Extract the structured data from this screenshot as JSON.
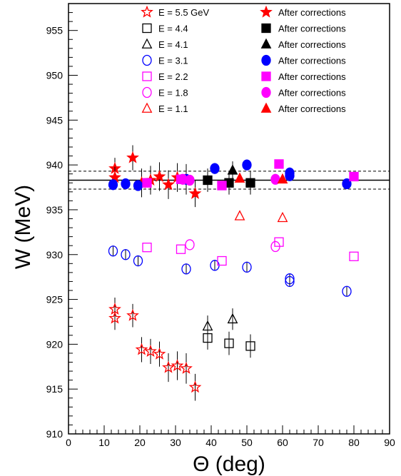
{
  "chart_data": {
    "type": "scatter",
    "xlabel": "Θ (deg)",
    "ylabel": "W (MeV)",
    "xlim": [
      0,
      90
    ],
    "ylim": [
      910,
      958
    ],
    "x_ticks": [
      "0",
      "10",
      "20",
      "30",
      "40",
      "50",
      "60",
      "70",
      "80",
      "90"
    ],
    "y_ticks": [
      "910",
      "915",
      "920",
      "925",
      "930",
      "935",
      "940",
      "945",
      "950",
      "955"
    ],
    "reference_lines": {
      "solid": 938.3,
      "dashed": [
        937.3,
        939.3
      ]
    },
    "legend": {
      "placement": "top",
      "rows": [
        {
          "label": "E = 5.5 GeV",
          "corr_label": "After corrections",
          "color": "#ff0000",
          "symbol": "star"
        },
        {
          "label": "E = 4.4",
          "corr_label": "After corrections",
          "color": "#000000",
          "symbol": "square"
        },
        {
          "label": "E = 4.1",
          "corr_label": "After corrections",
          "color": "#000000",
          "symbol": "triangle"
        },
        {
          "label": "E = 3.1",
          "corr_label": "After corrections",
          "color": "#0000ff",
          "symbol": "circle"
        },
        {
          "label": "E = 2.2",
          "corr_label": "After corrections",
          "color": "#ff00ff",
          "symbol": "square"
        },
        {
          "label": "E = 1.8",
          "corr_label": "After corrections",
          "color": "#ff00ff",
          "symbol": "circle"
        },
        {
          "label": "E = 1.1",
          "corr_label": "After corrections",
          "color": "#ff0000",
          "symbol": "triangle"
        }
      ]
    },
    "series": [
      {
        "name": "E = 5.5 GeV",
        "symbol": "star",
        "filled": false,
        "color": "#ff0000",
        "points": [
          [
            13,
            923.9,
            1.3
          ],
          [
            13,
            922.9,
            1.3
          ],
          [
            18,
            923.2,
            1.3
          ],
          [
            20.5,
            919.4,
            1.4
          ],
          [
            23,
            919.2,
            1.4
          ],
          [
            25.5,
            918.9,
            1.4
          ],
          [
            28,
            917.4,
            1.6
          ],
          [
            30.5,
            917.6,
            1.6
          ],
          [
            33,
            917.3,
            1.7
          ],
          [
            35.5,
            915.2,
            1.5
          ]
        ]
      },
      {
        "name": "After corrections 5.5",
        "symbol": "star",
        "filled": true,
        "color": "#ff0000",
        "points": [
          [
            13,
            939.6,
            1.2
          ],
          [
            13,
            938.6,
            1.2
          ],
          [
            18,
            940.8,
            1.4
          ],
          [
            20.5,
            938.0,
            1.6
          ],
          [
            23,
            938.3,
            1.6
          ],
          [
            25.5,
            938.7,
            1.6
          ],
          [
            28,
            937.8,
            1.6
          ],
          [
            30.5,
            938.6,
            1.6
          ],
          [
            33,
            938.4,
            1.7
          ],
          [
            35.5,
            936.8,
            1.5
          ]
        ]
      },
      {
        "name": "E = 4.4",
        "symbol": "square",
        "filled": false,
        "color": "#000000",
        "points": [
          [
            39,
            920.7,
            1.3
          ],
          [
            45,
            920.1,
            1.3
          ],
          [
            51,
            919.8,
            1.3
          ]
        ]
      },
      {
        "name": "After corrections 4.4",
        "symbol": "square",
        "filled": true,
        "color": "#000000",
        "points": [
          [
            39,
            938.3,
            1.3
          ],
          [
            45,
            938.0,
            1.3
          ],
          [
            51,
            938.0,
            1.3
          ]
        ]
      },
      {
        "name": "E = 4.1",
        "symbol": "triangle",
        "filled": false,
        "color": "#000000",
        "points": [
          [
            39,
            922.0,
            1.2
          ],
          [
            46,
            922.8,
            1.2
          ]
        ]
      },
      {
        "name": "After corrections 4.1",
        "symbol": "triangle",
        "filled": true,
        "color": "#000000",
        "points": [
          [
            46,
            939.4,
            1.0
          ]
        ]
      },
      {
        "name": "E = 3.1",
        "symbol": "circle",
        "filled": false,
        "color": "#0000ff",
        "points": [
          [
            12.5,
            930.4,
            0.6
          ],
          [
            16,
            930.0,
            0.6
          ],
          [
            19.5,
            929.3,
            0.6
          ],
          [
            33,
            928.4,
            0.6
          ],
          [
            41,
            928.8,
            0.6
          ],
          [
            50,
            928.6,
            0.6
          ],
          [
            62,
            927.3,
            0.6
          ],
          [
            62,
            927.0,
            0.6
          ],
          [
            78,
            925.9,
            0.5
          ]
        ]
      },
      {
        "name": "After corrections 3.1",
        "symbol": "circle",
        "filled": true,
        "color": "#0000ff",
        "points": [
          [
            12.5,
            937.8,
            0.6
          ],
          [
            16,
            937.9,
            0.6
          ],
          [
            19.5,
            937.7,
            0.6
          ],
          [
            33,
            938.4,
            0.6
          ],
          [
            41,
            939.6,
            0.6
          ],
          [
            50,
            940.0,
            0.6
          ],
          [
            62,
            939.1,
            0.6
          ],
          [
            62,
            938.8,
            0.6
          ],
          [
            78,
            937.9,
            0.5
          ]
        ]
      },
      {
        "name": "E = 2.2",
        "symbol": "square",
        "filled": false,
        "color": "#ff00ff",
        "points": [
          [
            22,
            930.8,
            0
          ],
          [
            31.5,
            930.6,
            0
          ],
          [
            43,
            929.3,
            0
          ],
          [
            59,
            931.4,
            0
          ],
          [
            80,
            929.8,
            0
          ]
        ]
      },
      {
        "name": "After corrections 2.2",
        "symbol": "square",
        "filled": true,
        "color": "#ff00ff",
        "points": [
          [
            22,
            938.0,
            0
          ],
          [
            31.5,
            938.4,
            0
          ],
          [
            43,
            937.7,
            0
          ],
          [
            59,
            940.1,
            0
          ],
          [
            80,
            938.7,
            0
          ]
        ]
      },
      {
        "name": "E = 1.8",
        "symbol": "circle",
        "filled": false,
        "color": "#ff00ff",
        "points": [
          [
            34,
            931.1,
            0
          ],
          [
            58,
            930.9,
            0
          ]
        ]
      },
      {
        "name": "After corrections 1.8",
        "symbol": "circle",
        "filled": true,
        "color": "#ff00ff",
        "points": [
          [
            32,
            938.4,
            0
          ],
          [
            34,
            938.3,
            0
          ],
          [
            58,
            938.4,
            0
          ]
        ]
      },
      {
        "name": "E = 1.1",
        "symbol": "triangle",
        "filled": false,
        "color": "#ff0000",
        "points": [
          [
            48,
            934.3,
            0
          ],
          [
            60,
            934.1,
            0
          ]
        ]
      },
      {
        "name": "After corrections 1.1",
        "symbol": "triangle",
        "filled": true,
        "color": "#ff0000",
        "points": [
          [
            48,
            938.5,
            0
          ],
          [
            60,
            938.4,
            0
          ]
        ]
      }
    ]
  }
}
